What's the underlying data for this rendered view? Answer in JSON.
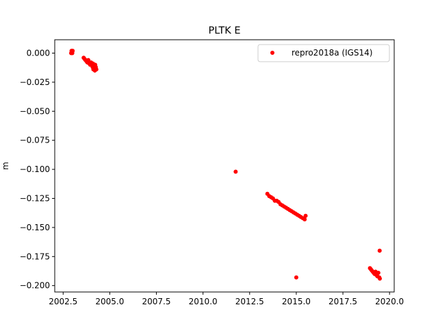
{
  "chart_data": {
    "type": "scatter",
    "title": "PLTK E",
    "xlabel": "",
    "ylabel": "m",
    "xlim": [
      2002.05,
      2020.25
    ],
    "ylim": [
      -0.2055,
      0.0115
    ],
    "xticks": [
      2002.5,
      2005.0,
      2007.5,
      2010.0,
      2012.5,
      2015.0,
      2017.5,
      2020.0
    ],
    "xtick_labels": [
      "2002.5",
      "2005.0",
      "2007.5",
      "2010.0",
      "2012.5",
      "2015.0",
      "2017.5",
      "2020.0"
    ],
    "yticks": [
      0.0,
      -0.025,
      -0.05,
      -0.075,
      -0.1,
      -0.125,
      -0.15,
      -0.175,
      -0.2
    ],
    "ytick_labels": [
      "0.000",
      "−0.025",
      "−0.050",
      "−0.075",
      "−0.100",
      "−0.125",
      "−0.150",
      "−0.175",
      "−0.200"
    ],
    "grid": false,
    "legend_position": "top-right",
    "series": [
      {
        "name": "repro2018a (IGS14)",
        "color": "#ff0000",
        "marker": "circle",
        "x": [
          2002.93,
          2002.95,
          2002.97,
          2002.99,
          2003.01,
          2003.6,
          2003.65,
          2003.7,
          2003.75,
          2003.8,
          2003.85,
          2003.9,
          2003.95,
          2004.0,
          2004.05,
          2004.08,
          2004.1,
          2004.12,
          2004.15,
          2004.18,
          2004.2,
          2004.22,
          2004.25,
          2004.28,
          2011.75,
          2013.45,
          2013.55,
          2013.65,
          2013.75,
          2013.85,
          2013.95,
          2014.05,
          2014.15,
          2014.25,
          2014.35,
          2014.45,
          2014.55,
          2014.65,
          2014.75,
          2014.85,
          2014.95,
          2015.05,
          2015.15,
          2015.25,
          2015.35,
          2015.45,
          2015.5,
          2015.0,
          2018.95,
          2019.0,
          2019.05,
          2019.1,
          2019.15,
          2019.2,
          2019.25,
          2019.3,
          2019.35,
          2019.4,
          2019.45,
          2019.48,
          2019.47
        ],
        "y": [
          0.0,
          0.002,
          0.001,
          0.0,
          0.002,
          -0.004,
          -0.005,
          -0.006,
          -0.007,
          -0.008,
          -0.006,
          -0.009,
          -0.01,
          -0.008,
          -0.01,
          -0.012,
          -0.009,
          -0.014,
          -0.011,
          -0.013,
          -0.015,
          -0.01,
          -0.012,
          -0.014,
          -0.102,
          -0.121,
          -0.123,
          -0.124,
          -0.125,
          -0.127,
          -0.127,
          -0.128,
          -0.13,
          -0.131,
          -0.132,
          -0.133,
          -0.134,
          -0.135,
          -0.136,
          -0.137,
          -0.138,
          -0.139,
          -0.14,
          -0.141,
          -0.142,
          -0.143,
          -0.14,
          -0.193,
          -0.185,
          -0.186,
          -0.187,
          -0.188,
          -0.189,
          -0.19,
          -0.188,
          -0.191,
          -0.192,
          -0.189,
          -0.193,
          -0.194,
          -0.17
        ]
      }
    ]
  }
}
